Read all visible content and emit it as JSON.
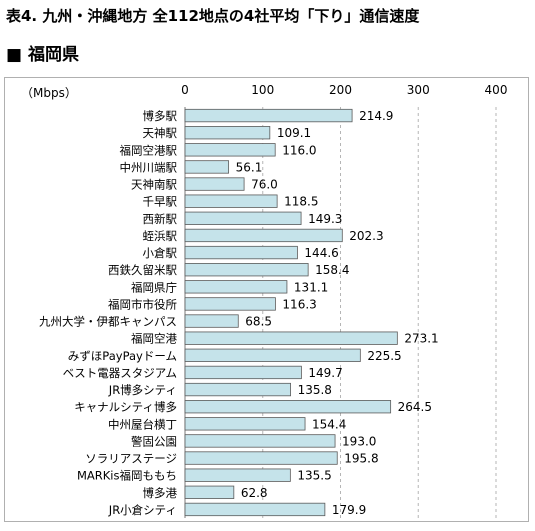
{
  "title": "表4. 九州・沖縄地方 全112地点の4社平均「下り」通信速度",
  "section": {
    "marker": "■",
    "label": "福岡県"
  },
  "chart_data": {
    "type": "bar",
    "orientation": "horizontal",
    "unit_label": "（Mbps）",
    "xlim": [
      0,
      400
    ],
    "ticks": [
      0,
      100,
      200,
      300,
      400
    ],
    "grid": true,
    "bar_color": "#c5e3ea",
    "bar_edge_color": "#5a5a5a",
    "categories": [
      "博多駅",
      "天神駅",
      "福岡空港駅",
      "中州川端駅",
      "天神南駅",
      "千早駅",
      "西新駅",
      "蛭浜駅",
      "小倉駅",
      "西鉄久留米駅",
      "福岡県庁",
      "福岡市市役所",
      "九州大学・伊都キャンパス",
      "福岡空港",
      "みずほPayPayドーム",
      "ベスト電器スタジアム",
      "JR博多シティ",
      "キャナルシティ博多",
      "中州屋台横丁",
      "警固公園",
      "ソラリアステージ",
      "MARKis福岡ももち",
      "博多港",
      "JR小倉シティ"
    ],
    "values": [
      214.9,
      109.1,
      116.0,
      56.1,
      76.0,
      118.5,
      149.3,
      202.3,
      144.6,
      158.4,
      131.1,
      116.3,
      68.5,
      273.1,
      225.5,
      149.7,
      135.8,
      264.5,
      154.4,
      193.0,
      195.8,
      135.5,
      62.8,
      179.9
    ],
    "value_labels": [
      "214.9",
      "109.1",
      "116.0",
      "56.1",
      "76.0",
      "118.5",
      "149.3",
      "202.3",
      "144.6",
      "158.4",
      "131.1",
      "116.3",
      "68.5",
      "273.1",
      "225.5",
      "149.7",
      "135.8",
      "264.5",
      "154.4",
      "193.0",
      "195.8",
      "135.5",
      "62.8",
      "179.9"
    ]
  }
}
